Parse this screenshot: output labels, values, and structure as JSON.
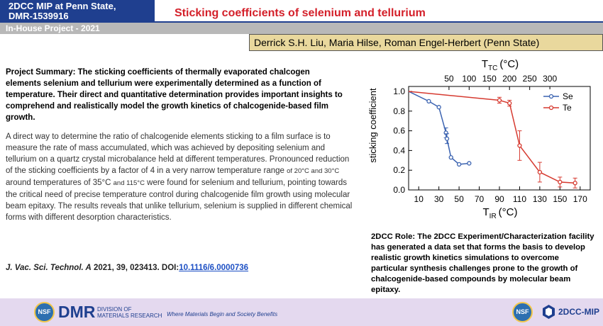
{
  "header": {
    "project_line1": "2DCC MIP at Penn State,",
    "project_line2": "DMR-1539916",
    "title": "Sticking coefficients of selenium and tellurium",
    "subheader": "In-House Project - 2021",
    "authors": "Derrick S.H. Liu, Maria Hilse, Roman Engel-Herbert (Penn State)"
  },
  "summary": {
    "text": "Project Summary:  The sticking coefficients of thermally evaporated chalcogen elements selenium and tellurium were experimentally determined as a function of temperature. Their direct and quantitative determination provides important insights to comprehend and realistically model the growth kinetics of chalcogenide-based film growth."
  },
  "body": {
    "part1": "A direct way to determine the ratio of chalcogenide elements sticking to a film surface is to measure the rate of mass accumulated, which was achieved by depositing selenium and tellurium on a quartz crystal microbalance held at different temperatures. Pronounced reduction of the sticking coefficients by a factor of 4 in a very narrow temperature range ",
    "small1": "of 20°C and 30°C",
    "part2": " around temperatures of 35°C ",
    "small2": "and 115°C",
    "part3": " were found for selenium and tellurium, pointing towards the critical need of precise temperature control during chalcogenide film growth using molecular beam epitaxy. The results reveals that unlike tellurium, selenium is supplied in different chemical forms with different desorption characteristics."
  },
  "citation": {
    "journal": "J. Vac. Sci. Technol. A",
    "details": " 2021, 39, 023413. DOI:",
    "doi": "10.1116/6.0000736"
  },
  "role": {
    "text": "2DCC Role: The 2DCC Experiment/Characterization facility has generated a data set that forms the basis to develop realistic growth kinetics simulations to overcome particular synthesis challenges prone to the growth of chalcogenide-based compounds by molecular beam epitaxy."
  },
  "footer": {
    "nsf": "NSF",
    "dmr": "DMR",
    "dmr_sub1": "DIVISION OF",
    "dmr_sub2": "MATERIALS RESEARCH",
    "tagline": "Where Materials Begin and Society Benefits",
    "mip": "2DCC-MIP"
  },
  "chart_data": {
    "type": "line",
    "ylabel": "sticking coefficient",
    "xlabel": "T",
    "xlabel_sub": "IR",
    "xlabel_unit": "(°C)",
    "x2label": "T",
    "x2label_sub": "TC",
    "x2label_unit": "(°C)",
    "xlim": [
      0,
      180
    ],
    "ylim": [
      0,
      1.05
    ],
    "xticks": [
      10,
      30,
      50,
      70,
      90,
      110,
      130,
      150,
      170
    ],
    "yticks": [
      0.0,
      0.2,
      0.4,
      0.6,
      0.8,
      1.0
    ],
    "x2ticks": [
      50,
      100,
      150,
      200,
      250,
      300
    ],
    "x2_scale_note": "T_TC = 2.5 * T_IR - 50",
    "legend": "top-right",
    "series": [
      {
        "name": "Se",
        "color": "#3a62b0",
        "marker": "circle",
        "x": [
          0,
          20,
          30,
          37,
          38,
          42,
          50,
          60
        ],
        "y": [
          1.0,
          0.9,
          0.84,
          0.58,
          0.52,
          0.33,
          0.26,
          0.27
        ],
        "err": [
          0,
          0,
          0,
          0.05,
          0.05,
          0,
          0,
          0
        ]
      },
      {
        "name": "Te",
        "color": "#d63a30",
        "marker": "circle",
        "x": [
          0,
          90,
          100,
          110,
          130,
          150,
          165
        ],
        "y": [
          1.0,
          0.91,
          0.88,
          0.45,
          0.18,
          0.08,
          0.07
        ],
        "err": [
          0,
          0.03,
          0.03,
          0.15,
          0.1,
          0.05,
          0.05
        ]
      }
    ]
  }
}
